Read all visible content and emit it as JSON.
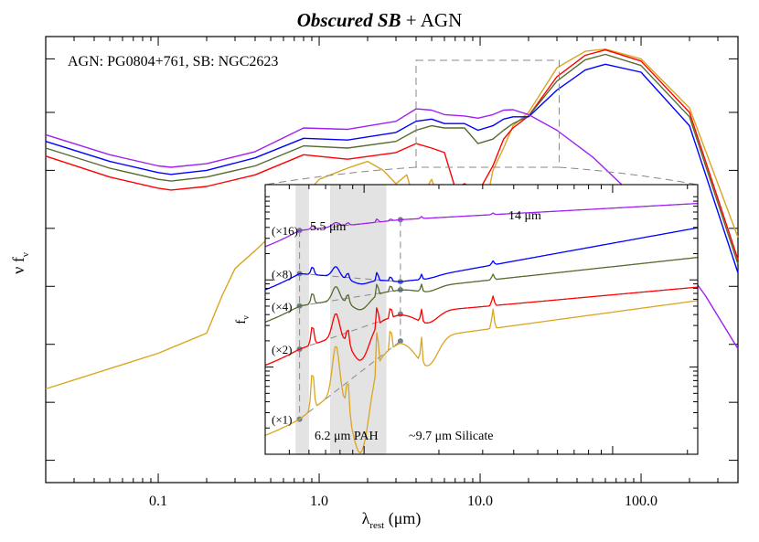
{
  "chart_data": {
    "type": "line",
    "title_bold": "Obscured SB",
    "title_rest": " + AGN",
    "annotation": "AGN: PG0804+761, SB: NGC2623",
    "xlabel_main": "λ",
    "xlabel_sub": "rest",
    "xlabel_unit": " (μm)",
    "ylabel_main": "ν f",
    "ylabel_sub": "ν",
    "x_scale": "log",
    "xlim": [
      0.02,
      400
    ],
    "x_ticks": [
      {
        "value": 0.1,
        "label": "0.1"
      },
      {
        "value": 1.0,
        "label": "1.0"
      },
      {
        "value": 10.0,
        "label": "10.0"
      },
      {
        "value": 100.0,
        "label": "100.0"
      }
    ],
    "colors": {
      "x16": "#a020f0",
      "x8": "#0000ff",
      "x4": "#556b2f",
      "x2": "#ff0000",
      "x1": "#daa520"
    },
    "series": [
      {
        "key": "x16",
        "x": [
          0.02,
          0.05,
          0.1,
          0.12,
          0.2,
          0.4,
          0.8,
          1.5,
          3,
          4,
          5,
          6,
          8,
          9.7,
          12,
          14,
          16,
          20,
          30,
          50,
          80,
          150,
          250,
          400
        ],
        "y": [
          0.22,
          0.265,
          0.29,
          0.293,
          0.285,
          0.258,
          0.205,
          0.208,
          0.19,
          0.162,
          0.165,
          0.175,
          0.178,
          0.183,
          0.175,
          0.165,
          0.164,
          0.175,
          0.21,
          0.27,
          0.34,
          0.47,
          0.58,
          0.7
        ]
      },
      {
        "key": "x8",
        "x": [
          0.02,
          0.05,
          0.1,
          0.12,
          0.2,
          0.4,
          0.8,
          1.5,
          3,
          4,
          5,
          6,
          8,
          9.7,
          12,
          14,
          16,
          20,
          30,
          45,
          60,
          100,
          200,
          400
        ],
        "y": [
          0.235,
          0.28,
          0.305,
          0.309,
          0.3,
          0.272,
          0.228,
          0.232,
          0.215,
          0.19,
          0.185,
          0.195,
          0.195,
          0.21,
          0.2,
          0.185,
          0.18,
          0.18,
          0.12,
          0.075,
          0.062,
          0.08,
          0.2,
          0.53
        ]
      },
      {
        "key": "x4",
        "x": [
          0.02,
          0.05,
          0.1,
          0.12,
          0.2,
          0.4,
          0.8,
          1.5,
          3,
          4,
          5,
          6,
          8,
          9.7,
          12,
          14,
          16,
          20,
          30,
          45,
          60,
          100,
          200,
          400
        ],
        "y": [
          0.25,
          0.295,
          0.32,
          0.324,
          0.315,
          0.29,
          0.245,
          0.25,
          0.235,
          0.21,
          0.2,
          0.205,
          0.205,
          0.24,
          0.23,
          0.21,
          0.195,
          0.178,
          0.1,
          0.052,
          0.04,
          0.065,
          0.18,
          0.51
        ]
      },
      {
        "key": "x2",
        "x": [
          0.02,
          0.05,
          0.1,
          0.12,
          0.2,
          0.4,
          0.8,
          1.5,
          3,
          4,
          5,
          6,
          7,
          8,
          9.7,
          12,
          14,
          16,
          20,
          30,
          45,
          60,
          100,
          200,
          400
        ],
        "y": [
          0.268,
          0.315,
          0.34,
          0.344,
          0.336,
          0.31,
          0.265,
          0.275,
          0.26,
          0.24,
          0.25,
          0.26,
          0.34,
          0.33,
          0.35,
          0.29,
          0.23,
          0.205,
          0.178,
          0.09,
          0.042,
          0.03,
          0.055,
          0.17,
          0.5
        ]
      },
      {
        "key": "x1",
        "x": [
          0.02,
          0.1,
          0.2,
          0.25,
          0.3,
          0.4,
          0.6,
          0.8,
          1,
          1.5,
          2,
          2.5,
          3,
          3.5,
          4,
          5,
          6,
          7,
          8,
          9.7,
          11,
          12,
          14,
          16,
          20,
          30,
          45,
          60,
          100,
          200,
          400
        ],
        "y": [
          0.79,
          0.71,
          0.665,
          0.58,
          0.52,
          0.48,
          0.42,
          0.36,
          0.32,
          0.295,
          0.28,
          0.3,
          0.33,
          0.31,
          0.38,
          0.32,
          0.4,
          0.35,
          0.46,
          0.43,
          0.37,
          0.3,
          0.25,
          0.2,
          0.17,
          0.07,
          0.033,
          0.028,
          0.05,
          0.16,
          0.45
        ]
      }
    ],
    "inset": {
      "ylabel_main": "f",
      "ylabel_sub": "ν",
      "xlim": [
        4,
        220
      ],
      "yrange": [
        0.0,
        1.0
      ],
      "shade_bands": [
        [
          5.3,
          6.0
        ],
        [
          7.3,
          12.3
        ]
      ],
      "markers": {
        "left": "5.5 μm",
        "right": "14 μm"
      },
      "band_labels": {
        "pah": "6.2 μm PAH",
        "silicate": "~9.7 μm Silicate"
      },
      "series": [
        {
          "key": "x16",
          "label": "(×16)",
          "left_y": 0.83,
          "right_y": 0.87,
          "end_y": 0.93
        },
        {
          "key": "x8",
          "label": "(×8)",
          "left_y": 0.67,
          "right_y": 0.64,
          "end_y": 0.84
        },
        {
          "key": "x4",
          "label": "(×4)",
          "left_y": 0.55,
          "right_y": 0.61,
          "end_y": 0.73
        },
        {
          "key": "x2",
          "label": "(×2)",
          "left_y": 0.39,
          "right_y": 0.52,
          "end_y": 0.62
        },
        {
          "key": "x1",
          "label": "(×1)",
          "left_y": 0.13,
          "right_y": 0.42,
          "end_y": 0.57
        }
      ]
    }
  }
}
